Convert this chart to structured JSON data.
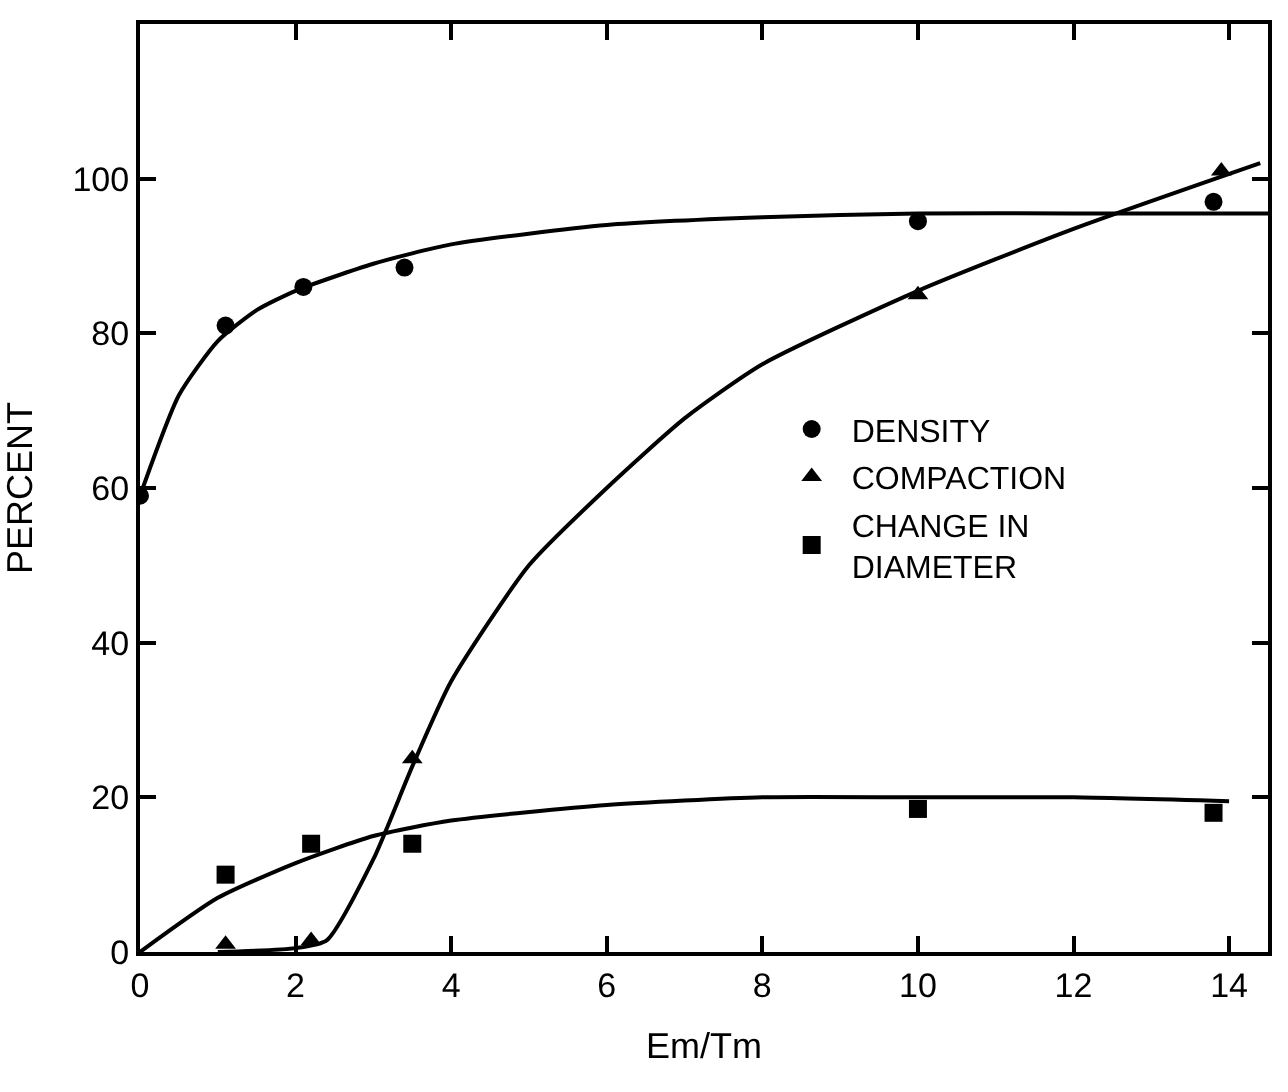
{
  "chart_data": {
    "type": "scatter",
    "xlabel": "Em/Tm",
    "ylabel": "PERCENT",
    "xlim": [
      0,
      14.5
    ],
    "xticks": [
      0,
      2,
      4,
      6,
      8,
      10,
      12,
      14
    ],
    "ylim": [
      0,
      120
    ],
    "yticks": [
      0,
      20,
      40,
      60,
      80,
      100,
      {
        "value": 120,
        "label": null
      }
    ],
    "legend": "right",
    "series": [
      {
        "name": "DENSITY",
        "color": "#000000",
        "marker": "circle",
        "x": [
          0,
          1.1,
          2.1,
          3.4,
          10,
          13.8
        ],
        "values": [
          59,
          81,
          86,
          88.5,
          94.5,
          97
        ]
      },
      {
        "name": "COMPACTION",
        "color": "#000000",
        "marker": "triangle",
        "x": [
          1.1,
          2.2,
          3.5,
          10,
          13.9
        ],
        "values": [
          1,
          1.5,
          25,
          85,
          101
        ]
      },
      {
        "name": "CHANGE IN\nDIAMETER",
        "color": "#000000",
        "marker": "square",
        "x": [
          1.1,
          2.2,
          3.5,
          10,
          13.8
        ],
        "values": [
          10,
          14,
          14,
          18.5,
          18
        ]
      },
      {
        "type": "line",
        "color": "#000000",
        "marker": "none",
        "x": [
          0,
          0.5,
          1,
          1.5,
          2,
          3,
          4,
          6,
          8,
          10,
          12,
          14.5
        ],
        "values": [
          59,
          72,
          79,
          83,
          85.5,
          89,
          91.5,
          94,
          95,
          95.5,
          95.5,
          95.5
        ]
      },
      {
        "type": "line",
        "color": "#000000",
        "marker": "none",
        "x": [
          1,
          2,
          2.4,
          3,
          3.5,
          4,
          5,
          6,
          7,
          8,
          10,
          12,
          14.4
        ],
        "values": [
          0,
          0.5,
          1.5,
          12,
          24,
          35,
          50,
          60,
          69,
          76,
          85.5,
          93.5,
          102
        ]
      },
      {
        "type": "line",
        "color": "#000000",
        "marker": "none",
        "x": [
          0,
          1,
          2,
          3,
          4,
          6,
          8,
          10,
          12,
          14
        ],
        "values": [
          0,
          7,
          11.5,
          15,
          17,
          19,
          20,
          20,
          20,
          19.5
        ]
      }
    ]
  }
}
